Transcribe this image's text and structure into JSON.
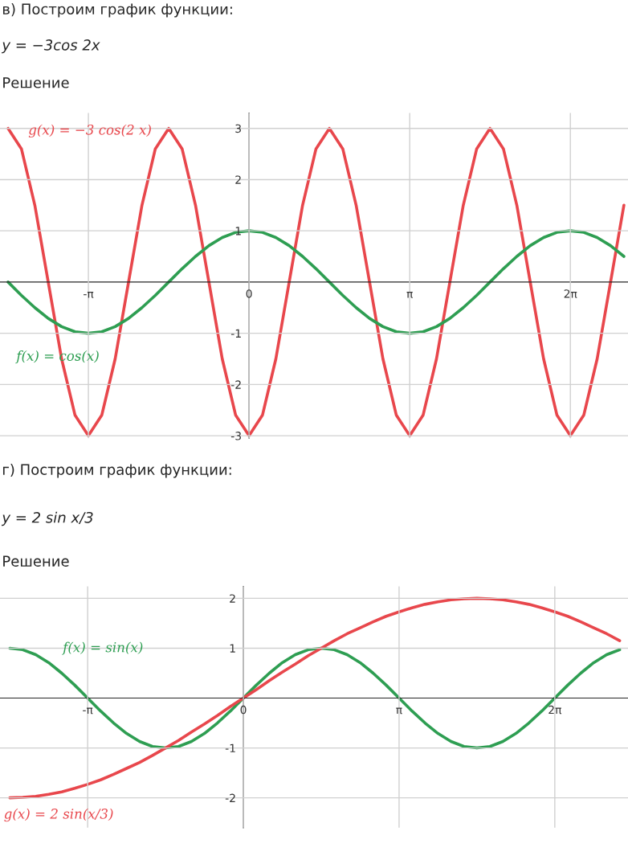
{
  "chart_data": [
    {
      "type": "line",
      "title": "в) Построим график функции:",
      "subtitle": "y = −3cos 2x",
      "annotations": [
        "Решение"
      ],
      "x": [
        -4.712,
        -4.451,
        -4.189,
        -3.927,
        -3.665,
        -3.403,
        -3.142,
        -2.88,
        -2.618,
        -2.356,
        -2.094,
        -1.833,
        -1.571,
        -1.309,
        -1.047,
        -0.785,
        -0.524,
        -0.262,
        0,
        0.262,
        0.524,
        0.785,
        1.047,
        1.309,
        1.571,
        1.833,
        2.094,
        2.356,
        2.618,
        2.88,
        3.142,
        3.403,
        3.665,
        3.927,
        4.189,
        4.451,
        4.712,
        4.974,
        5.236,
        5.498,
        5.76,
        6.021,
        6.283,
        6.545,
        6.807,
        7.069,
        7.33
      ],
      "series": [
        {
          "name": "g(x) = −3 cos(2 x)",
          "color": "#e8474c",
          "values": [
            3,
            2.6,
            1.5,
            0,
            -1.5,
            -2.6,
            -3,
            -2.6,
            -1.5,
            0,
            1.5,
            2.6,
            3,
            2.6,
            1.5,
            0,
            -1.5,
            -2.6,
            -3,
            -2.6,
            -1.5,
            0,
            1.5,
            2.6,
            3,
            2.6,
            1.5,
            0,
            -1.5,
            -2.6,
            -3,
            -2.6,
            -1.5,
            0,
            1.5,
            2.6,
            3,
            2.6,
            1.5,
            0,
            -1.5,
            -2.6,
            -3,
            -2.6,
            -1.5,
            0,
            1.5
          ]
        },
        {
          "name": "f(x) = cos(x)",
          "color": "#2e9e52",
          "values": [
            0,
            -0.26,
            -0.5,
            -0.71,
            -0.87,
            -0.97,
            -1,
            -0.97,
            -0.87,
            -0.71,
            -0.5,
            -0.26,
            0,
            0.26,
            0.5,
            0.71,
            0.87,
            0.97,
            1,
            0.97,
            0.87,
            0.71,
            0.5,
            0.26,
            0,
            -0.26,
            -0.5,
            -0.71,
            -0.87,
            -0.97,
            -1,
            -0.97,
            -0.87,
            -0.71,
            -0.5,
            -0.26,
            0,
            0.26,
            0.5,
            0.71,
            0.87,
            0.97,
            1,
            0.97,
            0.87,
            0.71,
            0.5
          ]
        }
      ],
      "xlim": [
        -4.87,
        7.41
      ],
      "ylim": [
        -3.05,
        3.3
      ],
      "xticks": [
        {
          "value": -3.1416,
          "label": "-π"
        },
        0,
        {
          "value": 3.1416,
          "label": "π"
        },
        {
          "value": 6.2832,
          "label": "2π"
        }
      ],
      "yticks": [
        -3,
        -2,
        -1,
        1,
        2,
        3
      ],
      "grid": true,
      "legend": false
    },
    {
      "type": "line",
      "title": "г) Построим график функции:",
      "subtitle": "y = 2 sin x/3",
      "annotations": [
        "Решение"
      ],
      "x": [
        -4.712,
        -4.451,
        -4.189,
        -3.927,
        -3.665,
        -3.403,
        -3.142,
        -2.88,
        -2.618,
        -2.356,
        -2.094,
        -1.833,
        -1.571,
        -1.309,
        -1.047,
        -0.785,
        -0.524,
        -0.262,
        0,
        0.262,
        0.524,
        0.785,
        1.047,
        1.309,
        1.571,
        1.833,
        2.094,
        2.356,
        2.618,
        2.88,
        3.142,
        3.403,
        3.665,
        3.927,
        4.189,
        4.451,
        4.712,
        4.974,
        5.236,
        5.498,
        5.76,
        6.021,
        6.283,
        6.545,
        6.807,
        7.069,
        7.33,
        7.592
      ],
      "series": [
        {
          "name": "f(x) = sin(x)",
          "color": "#2e9e52",
          "values": [
            1,
            0.97,
            0.87,
            0.71,
            0.5,
            0.26,
            0,
            -0.26,
            -0.5,
            -0.71,
            -0.87,
            -0.97,
            -1,
            -0.97,
            -0.87,
            -0.71,
            -0.5,
            -0.26,
            0,
            0.26,
            0.5,
            0.71,
            0.87,
            0.97,
            1,
            0.97,
            0.87,
            0.71,
            0.5,
            0.26,
            0,
            -0.26,
            -0.5,
            -0.71,
            -0.87,
            -0.97,
            -1,
            -0.97,
            -0.87,
            -0.71,
            -0.5,
            -0.26,
            0,
            0.26,
            0.5,
            0.71,
            0.87,
            0.97
          ]
        },
        {
          "name": "g(x) = 2 sin(x/3)",
          "color": "#e8474c",
          "values": [
            -2,
            -1.99,
            -1.97,
            -1.93,
            -1.88,
            -1.81,
            -1.73,
            -1.64,
            -1.53,
            -1.41,
            -1.29,
            -1.15,
            -1,
            -0.85,
            -0.68,
            -0.52,
            -0.35,
            -0.17,
            0,
            0.17,
            0.35,
            0.52,
            0.68,
            0.85,
            1,
            1.15,
            1.29,
            1.41,
            1.53,
            1.64,
            1.73,
            1.81,
            1.88,
            1.93,
            1.97,
            1.99,
            2,
            1.99,
            1.97,
            1.93,
            1.88,
            1.81,
            1.73,
            1.64,
            1.53,
            1.41,
            1.29,
            1.15
          ]
        }
      ],
      "xlim": [
        -4.91,
        7.76
      ],
      "ylim": [
        -2.6,
        2.24
      ],
      "xticks": [
        {
          "value": -3.1416,
          "label": "-π"
        },
        0,
        {
          "value": 3.1416,
          "label": "π"
        },
        {
          "value": 6.2832,
          "label": "2π"
        }
      ],
      "yticks": [
        -2,
        -1,
        1,
        2
      ],
      "grid": true,
      "legend": false
    }
  ]
}
